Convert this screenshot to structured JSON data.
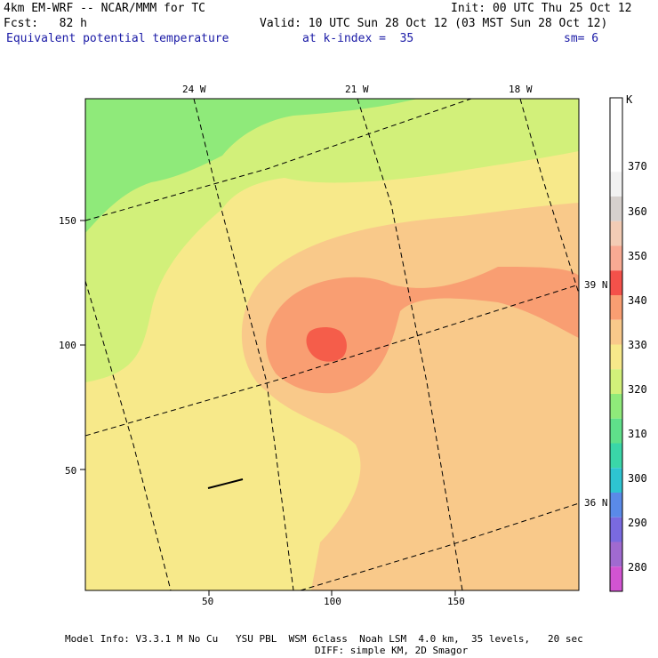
{
  "header": {
    "model": "4km EM-WRF -- NCAR/MMM for TC",
    "init": "Init: 00 UTC Thu 25 Oct 12",
    "fcst": "Fcst:   82 h",
    "valid": "Valid: 10 UTC Sun 28 Oct 12 (03 MST Sun 28 Oct 12)",
    "field": "Equivalent potential temperature",
    "k_index": "at k-index =  35",
    "smoothing": "sm= 6"
  },
  "map": {
    "lon_labels": [
      "24 W",
      "21 W",
      "18 W"
    ],
    "lat_labels": [
      "39 N",
      "36 N"
    ],
    "x_ticks": [
      "50",
      "100",
      "150"
    ],
    "y_ticks": [
      "150",
      "100",
      "50"
    ],
    "x_range": [
      0,
      200
    ],
    "y_range": [
      0,
      200
    ],
    "colors": {
      "band_300_310": "#5fe08a",
      "band_310_320": "#8fea7a",
      "band_320_330": "#d2f07a",
      "band_330_340": "#f7e98a",
      "band_340_350": "#f9c98a",
      "band_350_360": "#f99e72",
      "band_360_370": "#f55d4a"
    }
  },
  "colorbar": {
    "unit": "K",
    "labels": [
      "370",
      "360",
      "350",
      "340",
      "330",
      "320",
      "310",
      "300",
      "290",
      "280"
    ],
    "colors": [
      "#ffffff",
      "#ffffff",
      "#ffffff",
      "#f2f2f2",
      "#d6d0cd",
      "#f3ccb5",
      "#f9aa93",
      "#f4514a",
      "#f99e72",
      "#f9c98a",
      "#f7e98a",
      "#d2f07a",
      "#8fea7a",
      "#5fe08a",
      "#3ad6a8",
      "#2ec4d1",
      "#5a8ae8",
      "#7a6ae0",
      "#a06ad0",
      "#d254d2"
    ]
  },
  "footer": {
    "line1": "Model Info: V3.3.1 M No Cu   YSU PBL  WSM 6class  Noah LSM  4.0 km,  35 levels,   20 sec",
    "line2": "DIFF: simple KM, 2D Smagor"
  }
}
